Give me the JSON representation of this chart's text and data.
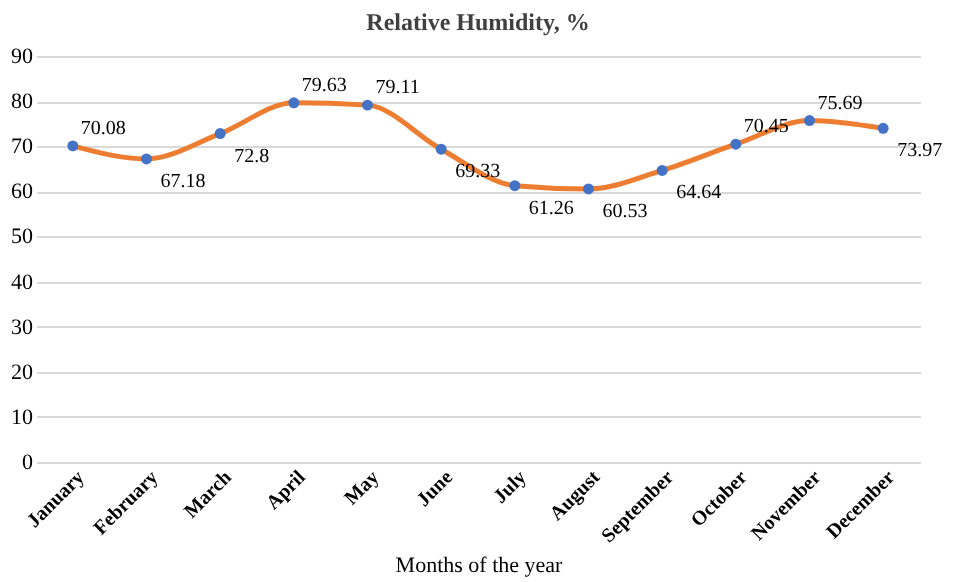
{
  "chart_data": {
    "type": "line",
    "title": "Relative Humidity,  %",
    "xlabel": "Months of the year",
    "categories": [
      "January",
      "February",
      "March",
      "April",
      "May",
      "June",
      "July",
      "August",
      "September",
      "October",
      "November",
      "December"
    ],
    "series": [
      {
        "color": "#ed7d31",
        "colors": [
          "#4472c4",
          "#4472c4",
          "#4472c4",
          "#4472c4",
          "#4472c4",
          "#4472c4",
          "#4472c4",
          "#4472c4",
          "#4472c4",
          "#4472c4",
          "#4472c4",
          "#4472c4"
        ],
        "values": [
          70.08,
          67.18,
          72.8,
          79.63,
          79.11,
          69.33,
          61.26,
          60.53,
          64.64,
          70.45,
          75.69,
          73.97
        ]
      }
    ],
    "ylim": [
      0,
      90
    ],
    "yticks": [
      0,
      10,
      20,
      30,
      40,
      50,
      60,
      70,
      80,
      90
    ],
    "grid": "y",
    "marker": "circle",
    "data_labels": true
  }
}
